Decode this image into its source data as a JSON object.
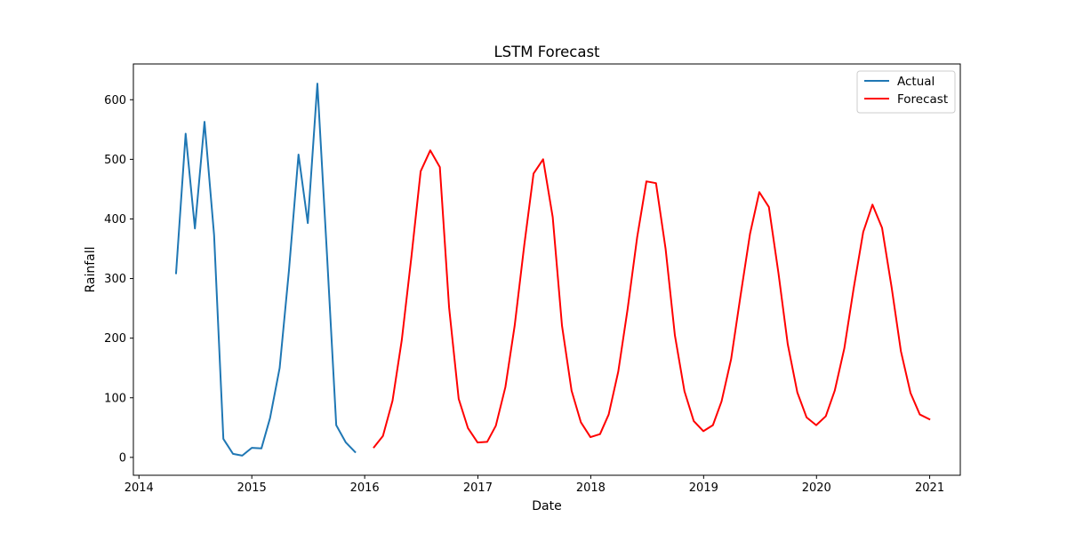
{
  "chart_data": {
    "type": "line",
    "title": "LSTM Forecast",
    "xlabel": "Date",
    "ylabel": "Rainfall",
    "xlim": [
      "2013-12-14",
      "2021-04-10"
    ],
    "ylim": [
      -30,
      660
    ],
    "x_ticks": [
      "2014",
      "2015",
      "2016",
      "2017",
      "2018",
      "2019",
      "2020",
      "2021"
    ],
    "y_ticks": [
      0,
      100,
      200,
      300,
      400,
      500,
      600
    ],
    "grid": false,
    "legend_position": "top-right",
    "series": [
      {
        "name": "Actual",
        "color": "#1f77b4",
        "x": [
          "2014-05-01",
          "2014-06-01",
          "2014-07-01",
          "2014-08-01",
          "2014-09-01",
          "2014-10-01",
          "2014-11-01",
          "2014-12-01",
          "2015-01-01",
          "2015-02-01",
          "2015-03-01",
          "2015-04-01",
          "2015-05-01",
          "2015-06-01",
          "2015-07-01",
          "2015-08-01",
          "2015-09-01",
          "2015-10-01",
          "2015-11-01",
          "2015-12-01"
        ],
        "values": [
          309,
          543,
          384,
          563,
          373,
          31,
          6,
          3,
          16,
          15,
          66,
          150,
          313,
          508,
          393,
          627,
          341,
          54,
          25,
          9
        ]
      },
      {
        "name": "Forecast",
        "color": "#ff0000",
        "x": [
          "2016-01-31",
          "2016-02-29",
          "2016-03-31",
          "2016-04-30",
          "2016-05-31",
          "2016-06-30",
          "2016-07-31",
          "2016-08-31",
          "2016-09-30",
          "2016-10-31",
          "2016-11-30",
          "2016-12-31",
          "2017-01-31",
          "2017-02-28",
          "2017-03-31",
          "2017-04-30",
          "2017-05-31",
          "2017-06-30",
          "2017-07-31",
          "2017-08-31",
          "2017-09-30",
          "2017-10-31",
          "2017-11-30",
          "2017-12-31",
          "2018-01-31",
          "2018-02-28",
          "2018-03-31",
          "2018-04-30",
          "2018-05-31",
          "2018-06-30",
          "2018-07-31",
          "2018-08-31",
          "2018-09-30",
          "2018-10-31",
          "2018-11-30",
          "2018-12-31",
          "2019-01-31",
          "2019-02-28",
          "2019-03-31",
          "2019-04-30",
          "2019-05-31",
          "2019-06-30",
          "2019-07-31",
          "2019-08-31",
          "2019-09-30",
          "2019-10-31",
          "2019-11-30",
          "2019-12-31",
          "2020-01-31",
          "2020-02-29",
          "2020-03-31",
          "2020-04-30",
          "2020-05-31",
          "2020-06-30",
          "2020-07-31",
          "2020-08-31",
          "2020-09-30",
          "2020-10-31",
          "2020-11-30",
          "2020-12-31"
        ],
        "values": [
          17,
          36,
          95,
          197,
          336,
          480,
          515,
          487,
          251,
          98,
          49,
          25,
          26,
          53,
          118,
          221,
          356,
          476,
          500,
          403,
          221,
          112,
          59,
          34,
          39,
          72,
          144,
          248,
          369,
          463,
          460,
          350,
          205,
          111,
          61,
          44,
          54,
          94,
          165,
          270,
          375,
          445,
          420,
          309,
          190,
          109,
          67,
          54,
          69,
          112,
          183,
          283,
          378,
          424,
          385,
          285,
          178,
          108,
          72,
          64
        ]
      }
    ]
  }
}
